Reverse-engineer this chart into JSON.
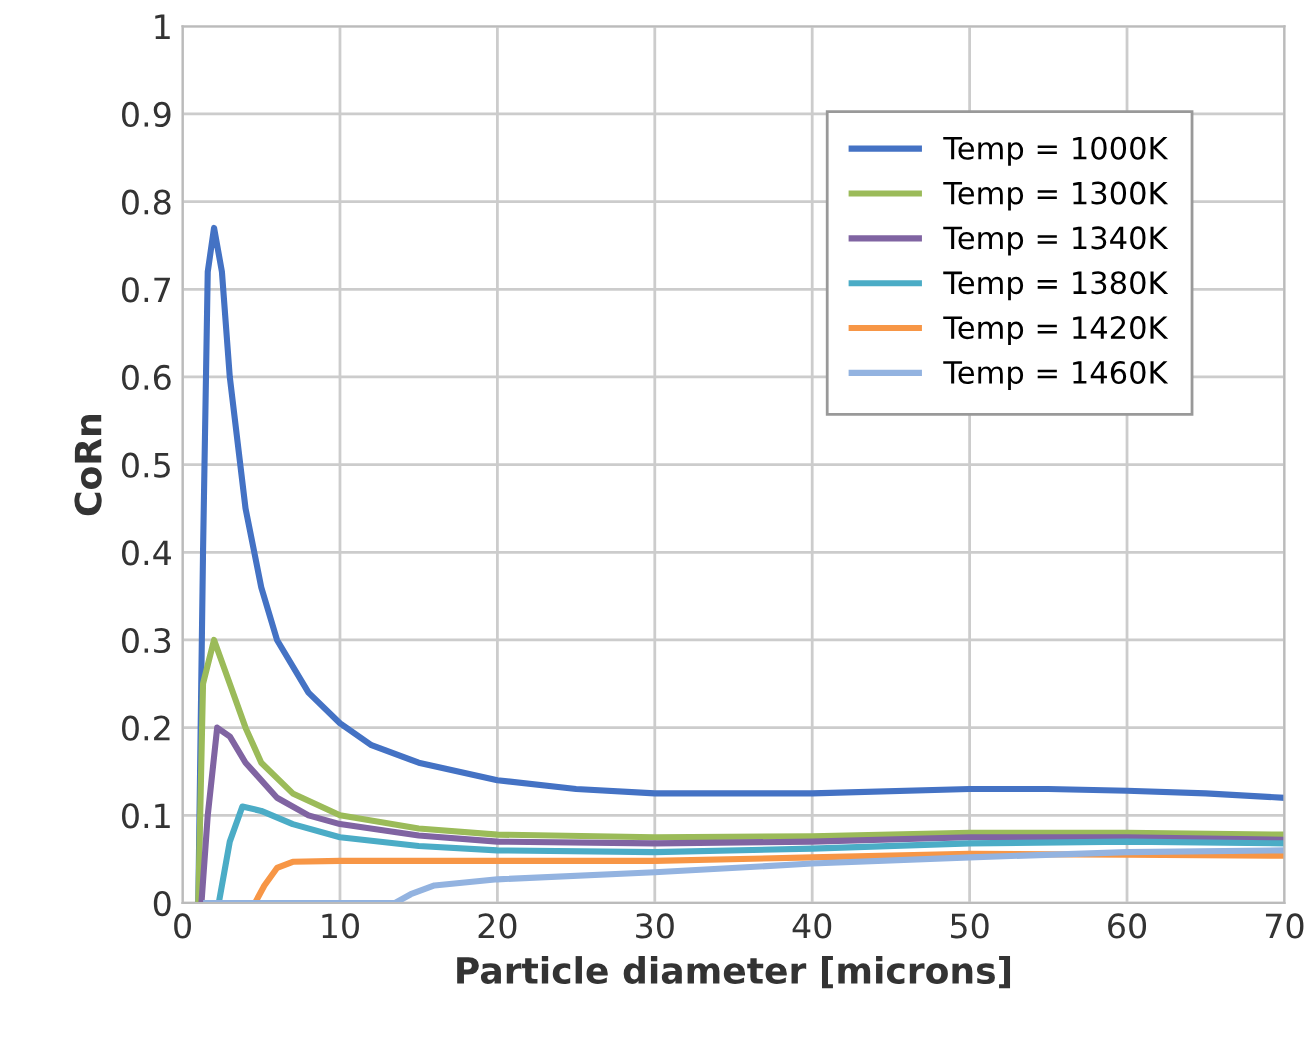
{
  "chart_data": {
    "type": "line",
    "xlabel": "Particle diameter [microns]",
    "ylabel": "CoRn",
    "xlim": [
      0,
      70
    ],
    "xticks": [
      0,
      10,
      20,
      30,
      40,
      50,
      60,
      70
    ],
    "ylim": [
      0,
      1
    ],
    "yticks": [
      0,
      0.1,
      0.2,
      0.3,
      0.4,
      0.5,
      0.6,
      0.7,
      0.8,
      0.9,
      1
    ],
    "grid": true,
    "legend": "top right",
    "marker": "none",
    "line_style": "solid",
    "series": [
      {
        "name": "Temp = 1000K",
        "color": "#4472c4",
        "x": [
          1.0,
          1.3,
          1.6,
          2.0,
          2.5,
          3,
          4,
          5,
          6,
          8,
          10,
          12,
          15,
          20,
          25,
          30,
          40,
          50,
          55,
          60,
          65,
          70
        ],
        "values": [
          0,
          0.4,
          0.72,
          0.77,
          0.72,
          0.6,
          0.45,
          0.36,
          0.3,
          0.24,
          0.205,
          0.18,
          0.16,
          0.14,
          0.13,
          0.125,
          0.125,
          0.13,
          0.13,
          0.128,
          0.125,
          0.12
        ]
      },
      {
        "name": "Temp = 1300K",
        "color": "#9bbb59",
        "x": [
          1.0,
          1.3,
          2.0,
          3,
          4,
          5,
          7,
          10,
          15,
          20,
          30,
          40,
          50,
          60,
          70
        ],
        "values": [
          0,
          0.25,
          0.3,
          0.25,
          0.2,
          0.16,
          0.125,
          0.1,
          0.085,
          0.078,
          0.075,
          0.076,
          0.08,
          0.08,
          0.078
        ]
      },
      {
        "name": "Temp = 1340K",
        "color": "#8064a2",
        "x": [
          1.2,
          1.6,
          2.2,
          3,
          4,
          6,
          8,
          10,
          15,
          20,
          30,
          40,
          50,
          60,
          70
        ],
        "values": [
          0,
          0.1,
          0.2,
          0.19,
          0.16,
          0.12,
          0.1,
          0.09,
          0.077,
          0.07,
          0.068,
          0.07,
          0.075,
          0.075,
          0.072
        ]
      },
      {
        "name": "Temp = 1380K",
        "color": "#4bacc6",
        "x": [
          2.3,
          3,
          3.8,
          5,
          7,
          10,
          15,
          20,
          30,
          40,
          50,
          60,
          70
        ],
        "values": [
          0,
          0.07,
          0.11,
          0.105,
          0.09,
          0.075,
          0.065,
          0.06,
          0.058,
          0.062,
          0.068,
          0.07,
          0.068
        ]
      },
      {
        "name": "Temp = 1420K",
        "color": "#f79646",
        "x": [
          4.6,
          5.2,
          6,
          7,
          10,
          20,
          30,
          40,
          50,
          60,
          70
        ],
        "values": [
          0,
          0.02,
          0.04,
          0.047,
          0.048,
          0.048,
          0.048,
          0.052,
          0.056,
          0.055,
          0.054
        ]
      },
      {
        "name": "Temp = 1460K",
        "color": "#93b3e0",
        "x": [
          1.5,
          13.5,
          14.5,
          16,
          20,
          30,
          40,
          50,
          60,
          70
        ],
        "values": [
          0,
          0,
          0.01,
          0.02,
          0.027,
          0.035,
          0.045,
          0.052,
          0.058,
          0.06
        ]
      }
    ]
  }
}
